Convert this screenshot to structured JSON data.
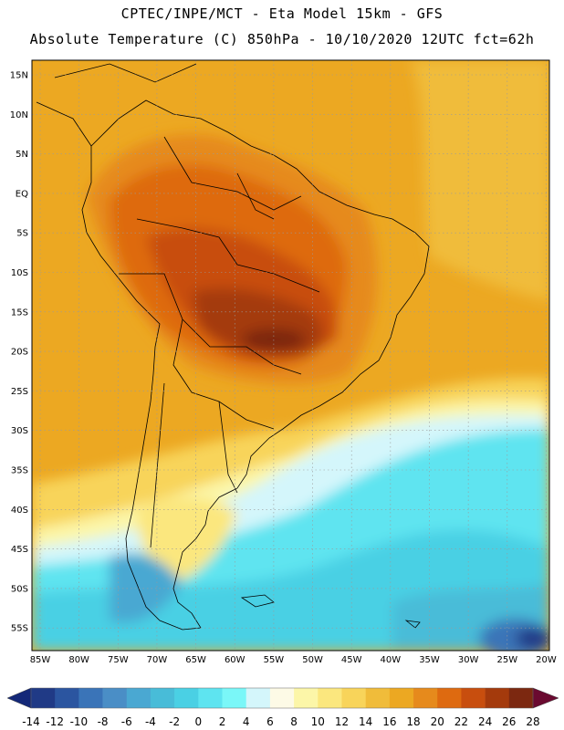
{
  "header": {
    "line1": "CPTEC/INPE/MCT -  Eta Model 15km - GFS",
    "line2": "Absolute Temperature (C) 850hPa - 10/10/2020 12UTC fct=62h"
  },
  "map": {
    "lat_labels": [
      "15N",
      "10N",
      "5N",
      "EQ",
      "5S",
      "10S",
      "15S",
      "20S",
      "25S",
      "30S",
      "35S",
      "40S",
      "45S",
      "50S",
      "55S"
    ],
    "lon_labels": [
      "85W",
      "80W",
      "75W",
      "70W",
      "65W",
      "60W",
      "55W",
      "50W",
      "45W",
      "40W",
      "35W",
      "30W",
      "25W",
      "20W"
    ]
  },
  "colorbar": {
    "labels": [
      "-14",
      "-12",
      "-10",
      "-8",
      "-6",
      "-4",
      "-2",
      "0",
      "2",
      "4",
      "6",
      "8",
      "10",
      "12",
      "14",
      "16",
      "18",
      "20",
      "22",
      "24",
      "26",
      "28"
    ],
    "colors": [
      "#203a86",
      "#2b55a0",
      "#3a74b8",
      "#4a8ec6",
      "#4aa8d2",
      "#48bcd8",
      "#4ad0e4",
      "#5ee4f0",
      "#7af7f8",
      "#d4f6fb",
      "#fdfae6",
      "#fcf6a8",
      "#fbe77e",
      "#f8d45a",
      "#f0bc3a",
      "#eca822",
      "#e68a1c",
      "#de6a10",
      "#c84e0e",
      "#a43a0c",
      "#7c2810"
    ],
    "low_arrow_color": "#142878",
    "high_arrow_color": "#6a0a30"
  }
}
